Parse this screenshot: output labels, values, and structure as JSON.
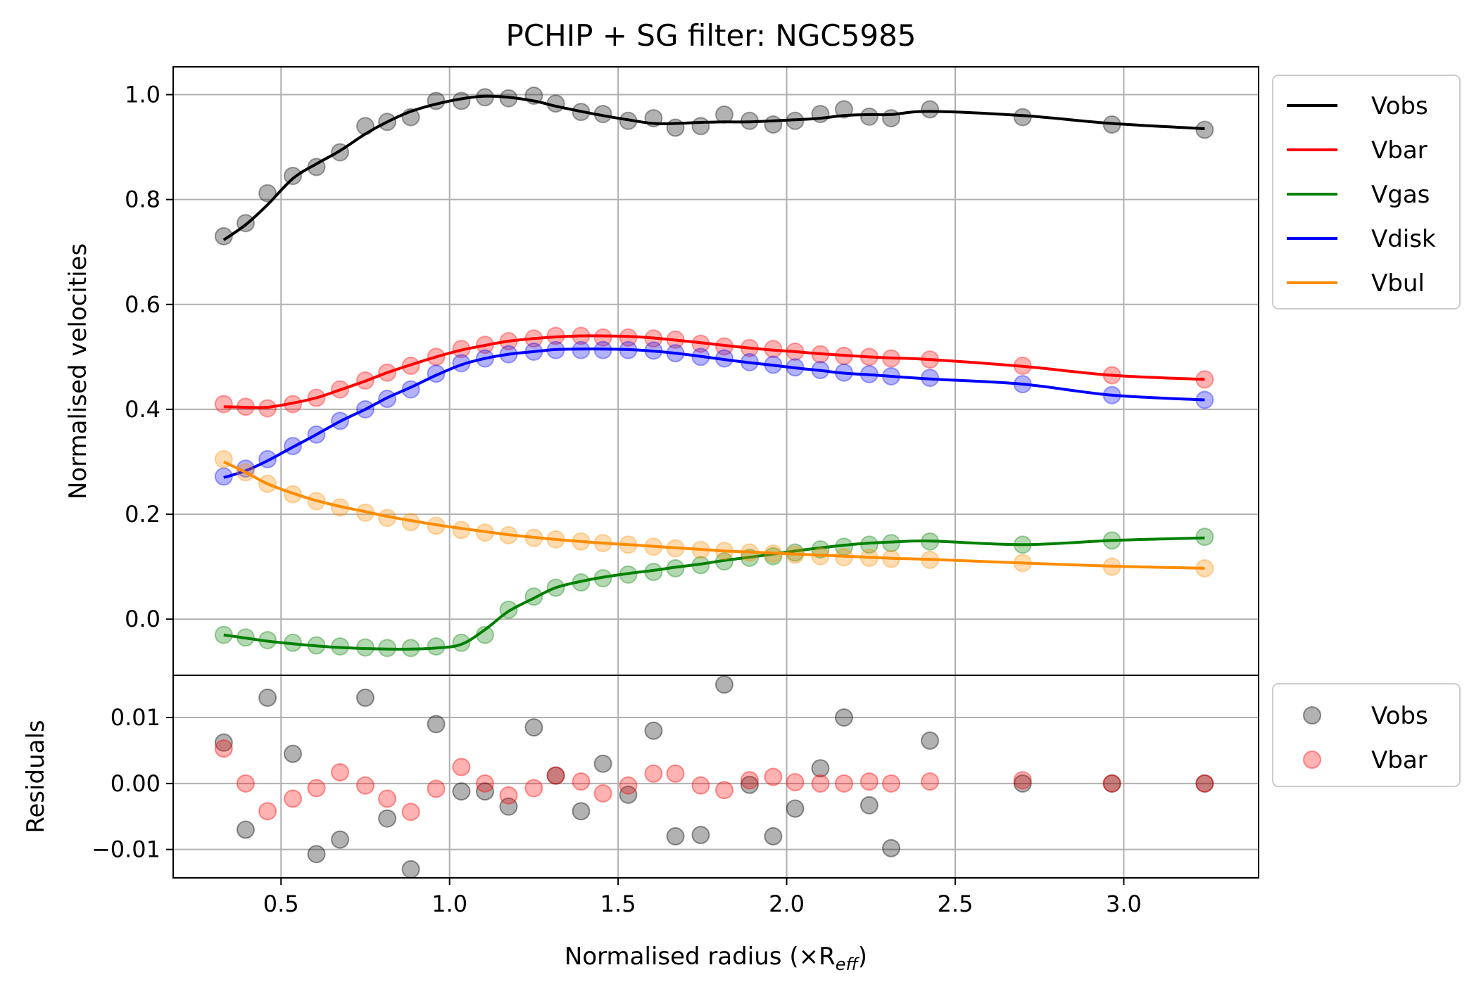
{
  "chart_data": {
    "type": "line",
    "title": "PCHIP + SG filter: NGC5985",
    "xlabel": "Normalised radius (×R",
    "xlabel_sub": "eff",
    "xlabel_close": ")",
    "xlim": [
      0.18,
      3.4
    ],
    "x_ticks": [
      0.5,
      1.0,
      1.5,
      2.0,
      2.5,
      3.0
    ],
    "x_tick_labels": [
      "0.5",
      "1.0",
      "1.5",
      "2.0",
      "2.5",
      "3.0"
    ],
    "top": {
      "ylabel": "Normalised velocities",
      "ylim": [
        -0.107,
        1.053
      ],
      "y_ticks": [
        0.0,
        0.2,
        0.4,
        0.6,
        0.8,
        1.0
      ],
      "y_tick_labels": [
        "0.0",
        "0.2",
        "0.4",
        "0.6",
        "0.8",
        "1.0"
      ],
      "grid": true,
      "legend_position": "outside upper right",
      "x": [
        0.33,
        0.395,
        0.46,
        0.535,
        0.605,
        0.675,
        0.75,
        0.815,
        0.885,
        0.96,
        1.035,
        1.105,
        1.175,
        1.25,
        1.315,
        1.39,
        1.455,
        1.53,
        1.605,
        1.67,
        1.745,
        1.815,
        1.89,
        1.96,
        2.025,
        2.1,
        2.17,
        2.245,
        2.31,
        2.425,
        2.7,
        2.965,
        3.24
      ],
      "series": [
        {
          "name": "Vobs",
          "color": "#000000",
          "points": [
            0.73,
            0.755,
            0.812,
            0.845,
            0.862,
            0.89,
            0.94,
            0.948,
            0.957,
            0.988,
            0.988,
            0.995,
            0.993,
            0.998,
            0.983,
            0.967,
            0.963,
            0.95,
            0.955,
            0.937,
            0.94,
            0.962,
            0.95,
            0.943,
            0.95,
            0.963,
            0.972,
            0.958,
            0.955,
            0.972,
            0.957,
            0.943,
            0.933
          ],
          "curve": [
            0.723,
            0.752,
            0.79,
            0.84,
            0.868,
            0.893,
            0.925,
            0.948,
            0.968,
            0.982,
            0.992,
            0.997,
            0.995,
            0.988,
            0.978,
            0.968,
            0.96,
            0.952,
            0.945,
            0.945,
            0.947,
            0.948,
            0.948,
            0.95,
            0.952,
            0.955,
            0.96,
            0.962,
            0.962,
            0.968,
            0.96,
            0.945,
            0.935
          ]
        },
        {
          "name": "Vbar",
          "color": "#ff0000",
          "points": [
            0.41,
            0.405,
            0.402,
            0.41,
            0.422,
            0.438,
            0.455,
            0.47,
            0.483,
            0.5,
            0.515,
            0.523,
            0.53,
            0.535,
            0.54,
            0.54,
            0.537,
            0.537,
            0.535,
            0.533,
            0.525,
            0.52,
            0.517,
            0.515,
            0.51,
            0.505,
            0.502,
            0.5,
            0.497,
            0.495,
            0.483,
            0.465,
            0.457
          ],
          "curve": [
            0.405,
            0.404,
            0.404,
            0.412,
            0.422,
            0.437,
            0.454,
            0.47,
            0.485,
            0.5,
            0.513,
            0.522,
            0.53,
            0.535,
            0.538,
            0.54,
            0.54,
            0.539,
            0.536,
            0.532,
            0.527,
            0.522,
            0.517,
            0.513,
            0.51,
            0.506,
            0.503,
            0.5,
            0.498,
            0.495,
            0.482,
            0.465,
            0.457
          ]
        },
        {
          "name": "Vgas",
          "color": "#008000",
          "points": [
            -0.03,
            -0.035,
            -0.04,
            -0.045,
            -0.05,
            -0.052,
            -0.054,
            -0.055,
            -0.055,
            -0.052,
            -0.045,
            -0.03,
            0.018,
            0.043,
            0.06,
            0.07,
            0.078,
            0.085,
            0.09,
            0.097,
            0.103,
            0.11,
            0.117,
            0.12,
            0.127,
            0.133,
            0.138,
            0.142,
            0.145,
            0.148,
            0.142,
            0.15,
            0.157
          ],
          "curve": [
            -0.03,
            -0.036,
            -0.042,
            -0.047,
            -0.051,
            -0.054,
            -0.056,
            -0.057,
            -0.057,
            -0.055,
            -0.048,
            -0.02,
            0.015,
            0.04,
            0.06,
            0.072,
            0.08,
            0.087,
            0.093,
            0.099,
            0.105,
            0.112,
            0.118,
            0.124,
            0.13,
            0.136,
            0.141,
            0.145,
            0.147,
            0.149,
            0.142,
            0.15,
            0.155
          ]
        },
        {
          "name": "Vdisk",
          "color": "#0000ff",
          "points": [
            0.272,
            0.287,
            0.305,
            0.33,
            0.352,
            0.378,
            0.4,
            0.42,
            0.438,
            0.468,
            0.488,
            0.497,
            0.505,
            0.51,
            0.513,
            0.513,
            0.513,
            0.513,
            0.512,
            0.507,
            0.5,
            0.497,
            0.49,
            0.485,
            0.48,
            0.475,
            0.47,
            0.467,
            0.463,
            0.46,
            0.448,
            0.427,
            0.418
          ],
          "curve": [
            0.27,
            0.283,
            0.302,
            0.328,
            0.352,
            0.377,
            0.4,
            0.422,
            0.442,
            0.465,
            0.485,
            0.497,
            0.505,
            0.51,
            0.514,
            0.515,
            0.515,
            0.514,
            0.511,
            0.507,
            0.501,
            0.495,
            0.489,
            0.484,
            0.479,
            0.474,
            0.469,
            0.466,
            0.463,
            0.458,
            0.448,
            0.427,
            0.418
          ]
        },
        {
          "name": "Vbul",
          "color": "#ff8c00",
          "points": [
            0.305,
            0.28,
            0.258,
            0.238,
            0.225,
            0.213,
            0.203,
            0.193,
            0.185,
            0.178,
            0.17,
            0.165,
            0.16,
            0.155,
            0.152,
            0.148,
            0.145,
            0.142,
            0.138,
            0.135,
            0.132,
            0.13,
            0.127,
            0.125,
            0.123,
            0.12,
            0.118,
            0.117,
            0.115,
            0.113,
            0.107,
            0.1,
            0.097
          ],
          "curve": [
            0.3,
            0.28,
            0.258,
            0.24,
            0.226,
            0.215,
            0.205,
            0.196,
            0.188,
            0.18,
            0.173,
            0.167,
            0.161,
            0.156,
            0.152,
            0.148,
            0.145,
            0.142,
            0.139,
            0.136,
            0.133,
            0.13,
            0.128,
            0.126,
            0.124,
            0.122,
            0.12,
            0.118,
            0.116,
            0.114,
            0.107,
            0.101,
            0.097
          ]
        }
      ]
    },
    "bottom": {
      "ylabel": "Residuals",
      "ylim": [
        -0.0143,
        0.0164
      ],
      "y_ticks": [
        -0.01,
        0.0,
        0.01
      ],
      "y_tick_labels": [
        "−0.01",
        "0.00",
        "0.01"
      ],
      "grid": true,
      "legend_position": "outside upper right",
      "series": [
        {
          "name": "Vobs",
          "color": "#000000",
          "values": [
            0.0062,
            -0.007,
            0.013,
            0.0045,
            -0.0107,
            -0.0085,
            0.013,
            -0.0053,
            -0.013,
            0.009,
            -0.0012,
            -0.0012,
            -0.0035,
            0.0085,
            0.0012,
            -0.0042,
            0.003,
            -0.0017,
            0.008,
            -0.008,
            -0.0078,
            0.015,
            -0.0002,
            -0.008,
            -0.0038,
            0.0023,
            0.01,
            -0.0033,
            -0.0098,
            0.0065,
            0.0,
            0.0,
            0.0
          ]
        },
        {
          "name": "Vbar",
          "color": "#ff0000",
          "values": [
            0.0053,
            0.0,
            -0.0042,
            -0.0023,
            -0.0007,
            0.0017,
            -0.0003,
            -0.0023,
            -0.0043,
            -0.0008,
            0.0025,
            0.0,
            -0.0018,
            -0.0007,
            0.0012,
            0.0003,
            -0.0015,
            -0.0003,
            0.0015,
            0.0015,
            -0.0003,
            -0.001,
            0.0005,
            0.001,
            0.0002,
            0.0,
            0.0,
            0.0003,
            0.0,
            0.0003,
            0.0005,
            0.0,
            0.0
          ]
        }
      ]
    }
  }
}
